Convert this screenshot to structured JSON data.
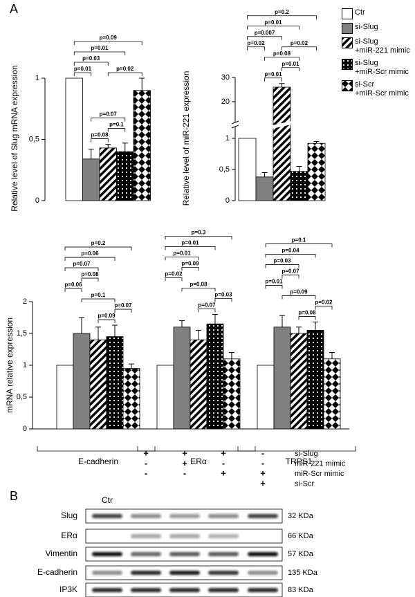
{
  "panels": [
    "A",
    "B"
  ],
  "legend": [
    {
      "name": "Ctr",
      "color": "#ffffff",
      "pattern": "none"
    },
    {
      "name": "si-Slug",
      "color": "#808080",
      "pattern": "solid"
    },
    {
      "name": "si-Slug\n+miR-221 mimic",
      "color": "#000000",
      "pattern": "stripes"
    },
    {
      "name": "si-Slug\n+miR-Scr mimic",
      "color": "#000000",
      "pattern": "dots"
    },
    {
      "name": "si-Scr\n+miR-Scr mimic",
      "color": "#000000",
      "pattern": "diamonds"
    }
  ],
  "chart_data": [
    {
      "type": "bar",
      "ylabel": "Relative level of Slug mRNA expression",
      "values": [
        1,
        0.34,
        0.43,
        0.4,
        0.9
      ],
      "errors": [
        0,
        0.08,
        0.03,
        0.07,
        0.1
      ],
      "ylim": [
        0,
        1
      ],
      "yticks": [
        0,
        {
          "value": 0.5,
          "label": "0,5"
        },
        1
      ],
      "comparisons": [
        {
          "label": "p=0.08",
          "between": [
            1,
            2
          ]
        },
        {
          "label": "p=0.1",
          "between": [
            2,
            3
          ]
        },
        {
          "label": "p=0.07",
          "between": [
            1,
            3
          ]
        },
        {
          "label": "p=0.01",
          "between": [
            0,
            1
          ]
        },
        {
          "label": "p=0.02",
          "between": [
            2,
            4
          ]
        },
        {
          "label": "p=0.03",
          "between": [
            0,
            2
          ]
        },
        {
          "label": "p=0.01",
          "between": [
            0,
            3
          ]
        },
        {
          "label": "p=0.09",
          "between": [
            0,
            4
          ]
        }
      ]
    },
    {
      "type": "bar",
      "ylabel": "Relative level of miR-221 expression",
      "values": [
        1,
        0.38,
        26,
        0.47,
        0.92
      ],
      "errors": [
        0,
        0.07,
        1.5,
        0.08,
        0.03
      ],
      "ylim": [
        0,
        30
      ],
      "ybreak": [
        1.2,
        10
      ],
      "yticks": [
        0,
        {
          "value": 0.5,
          "label": "0,5"
        },
        1,
        20,
        30
      ],
      "comparisons": [
        {
          "label": "p=0.01",
          "between": [
            1,
            2
          ]
        },
        {
          "label": "p=0.01",
          "between": [
            2,
            3
          ]
        },
        {
          "label": "p=0.08",
          "between": [
            1,
            3
          ]
        },
        {
          "label": "p=0.02",
          "between": [
            0,
            1
          ]
        },
        {
          "label": "p=0.02",
          "between": [
            2,
            4
          ]
        },
        {
          "label": "p=0.007",
          "between": [
            0,
            2
          ]
        },
        {
          "label": "p=0.01",
          "between": [
            0,
            3
          ]
        },
        {
          "label": "p=0.2",
          "between": [
            0,
            4
          ]
        }
      ]
    },
    {
      "type": "grouped_bar",
      "ylabel": "mRNA relative expression",
      "categories": [
        "E-cadherin",
        "ERα",
        "TRPS1"
      ],
      "series": [
        {
          "values": [
            1,
            1,
            1
          ],
          "errors": [
            0,
            0,
            0
          ]
        },
        {
          "values": [
            1.5,
            1.6,
            1.6
          ],
          "errors": [
            0.25,
            0.1,
            0.18
          ]
        },
        {
          "values": [
            1.4,
            1.4,
            1.5
          ],
          "errors": [
            0.2,
            0.15,
            0.1
          ]
        },
        {
          "values": [
            1.45,
            1.65,
            1.55
          ],
          "errors": [
            0.18,
            0.15,
            0.13
          ]
        },
        {
          "values": [
            0.95,
            1.1,
            1.1
          ],
          "errors": [
            0.07,
            0.1,
            0.1
          ]
        }
      ],
      "ylim": [
        0,
        2
      ],
      "yticks": [
        0,
        {
          "value": 0.5,
          "label": "0,5"
        },
        1,
        {
          "value": 1.5,
          "label": "1,5"
        },
        2
      ],
      "comparisons": [
        [
          {
            "label": "p=0.09",
            "between": [
              2,
              3
            ]
          },
          {
            "label": "p=0.07",
            "between": [
              3,
              4
            ]
          },
          {
            "label": "p=0.1",
            "between": [
              1,
              3
            ]
          },
          {
            "label": "p=0.06",
            "between": [
              0,
              1
            ]
          },
          {
            "label": "p=0.08",
            "between": [
              1,
              2
            ]
          },
          {
            "label": "p=0.07",
            "between": [
              0,
              2
            ]
          },
          {
            "label": "p=0.06",
            "between": [
              0,
              3
            ]
          },
          {
            "label": "p=0.2",
            "between": [
              0,
              4
            ]
          }
        ],
        [
          {
            "label": "p=0.07",
            "between": [
              2,
              3
            ]
          },
          {
            "label": "p=0.03",
            "between": [
              3,
              4
            ]
          },
          {
            "label": "p=0.08",
            "between": [
              1,
              3
            ]
          },
          {
            "label": "p=0.02",
            "between": [
              0,
              1
            ]
          },
          {
            "label": "p=0.09",
            "between": [
              1,
              2
            ]
          },
          {
            "label": "p=0.01",
            "between": [
              0,
              2
            ]
          },
          {
            "label": "p=0.01",
            "between": [
              0,
              3
            ]
          },
          {
            "label": "p=0.3",
            "between": [
              0,
              4
            ]
          }
        ],
        [
          {
            "label": "p=0.08",
            "between": [
              2,
              3
            ]
          },
          {
            "label": "p=0.02",
            "between": [
              3,
              4
            ]
          },
          {
            "label": "p=0.09",
            "between": [
              1,
              3
            ]
          },
          {
            "label": "p=0.01",
            "between": [
              0,
              1
            ]
          },
          {
            "label": "p=0.07",
            "between": [
              1,
              2
            ]
          },
          {
            "label": "p=0.03",
            "between": [
              0,
              2
            ]
          },
          {
            "label": "p=0.04",
            "between": [
              0,
              3
            ]
          },
          {
            "label": "p=0.1",
            "between": [
              0,
              4
            ]
          }
        ]
      ]
    }
  ],
  "blot": {
    "lanes": [
      "Ctr",
      null,
      null,
      null,
      null
    ],
    "conditions": [
      {
        "label": "si-Slug",
        "signs": [
          "+",
          "+",
          "+",
          "-"
        ]
      },
      {
        "label": "miR-221 mimic",
        "signs": [
          "-",
          "+",
          "-",
          "-"
        ]
      },
      {
        "label": "miR-Scr mimic",
        "signs": [
          "-",
          "-",
          "+",
          "+"
        ]
      },
      {
        "label": "si-Scr",
        "signs": [
          null,
          null,
          null,
          "+"
        ]
      }
    ],
    "rows": [
      {
        "label": "Slug",
        "size": "32 KDa",
        "bands": [
          0.75,
          0.45,
          0.4,
          0.45,
          0.75
        ]
      },
      {
        "label": "ERα",
        "size": "66 KDa",
        "bands": [
          0,
          0.35,
          0.35,
          0.3,
          0
        ]
      },
      {
        "label": "Vimentin",
        "size": "57 KDa",
        "bands": [
          0.95,
          0.6,
          0.65,
          0.65,
          0.95
        ]
      },
      {
        "label": "E-cadherin",
        "size": "135 KDa",
        "bands": [
          0.45,
          0.85,
          0.9,
          0.8,
          0.45
        ]
      },
      {
        "label": "IP3K",
        "size": "83 KDa",
        "bands": [
          0.85,
          0.85,
          0.85,
          0.85,
          0.85
        ]
      }
    ]
  }
}
